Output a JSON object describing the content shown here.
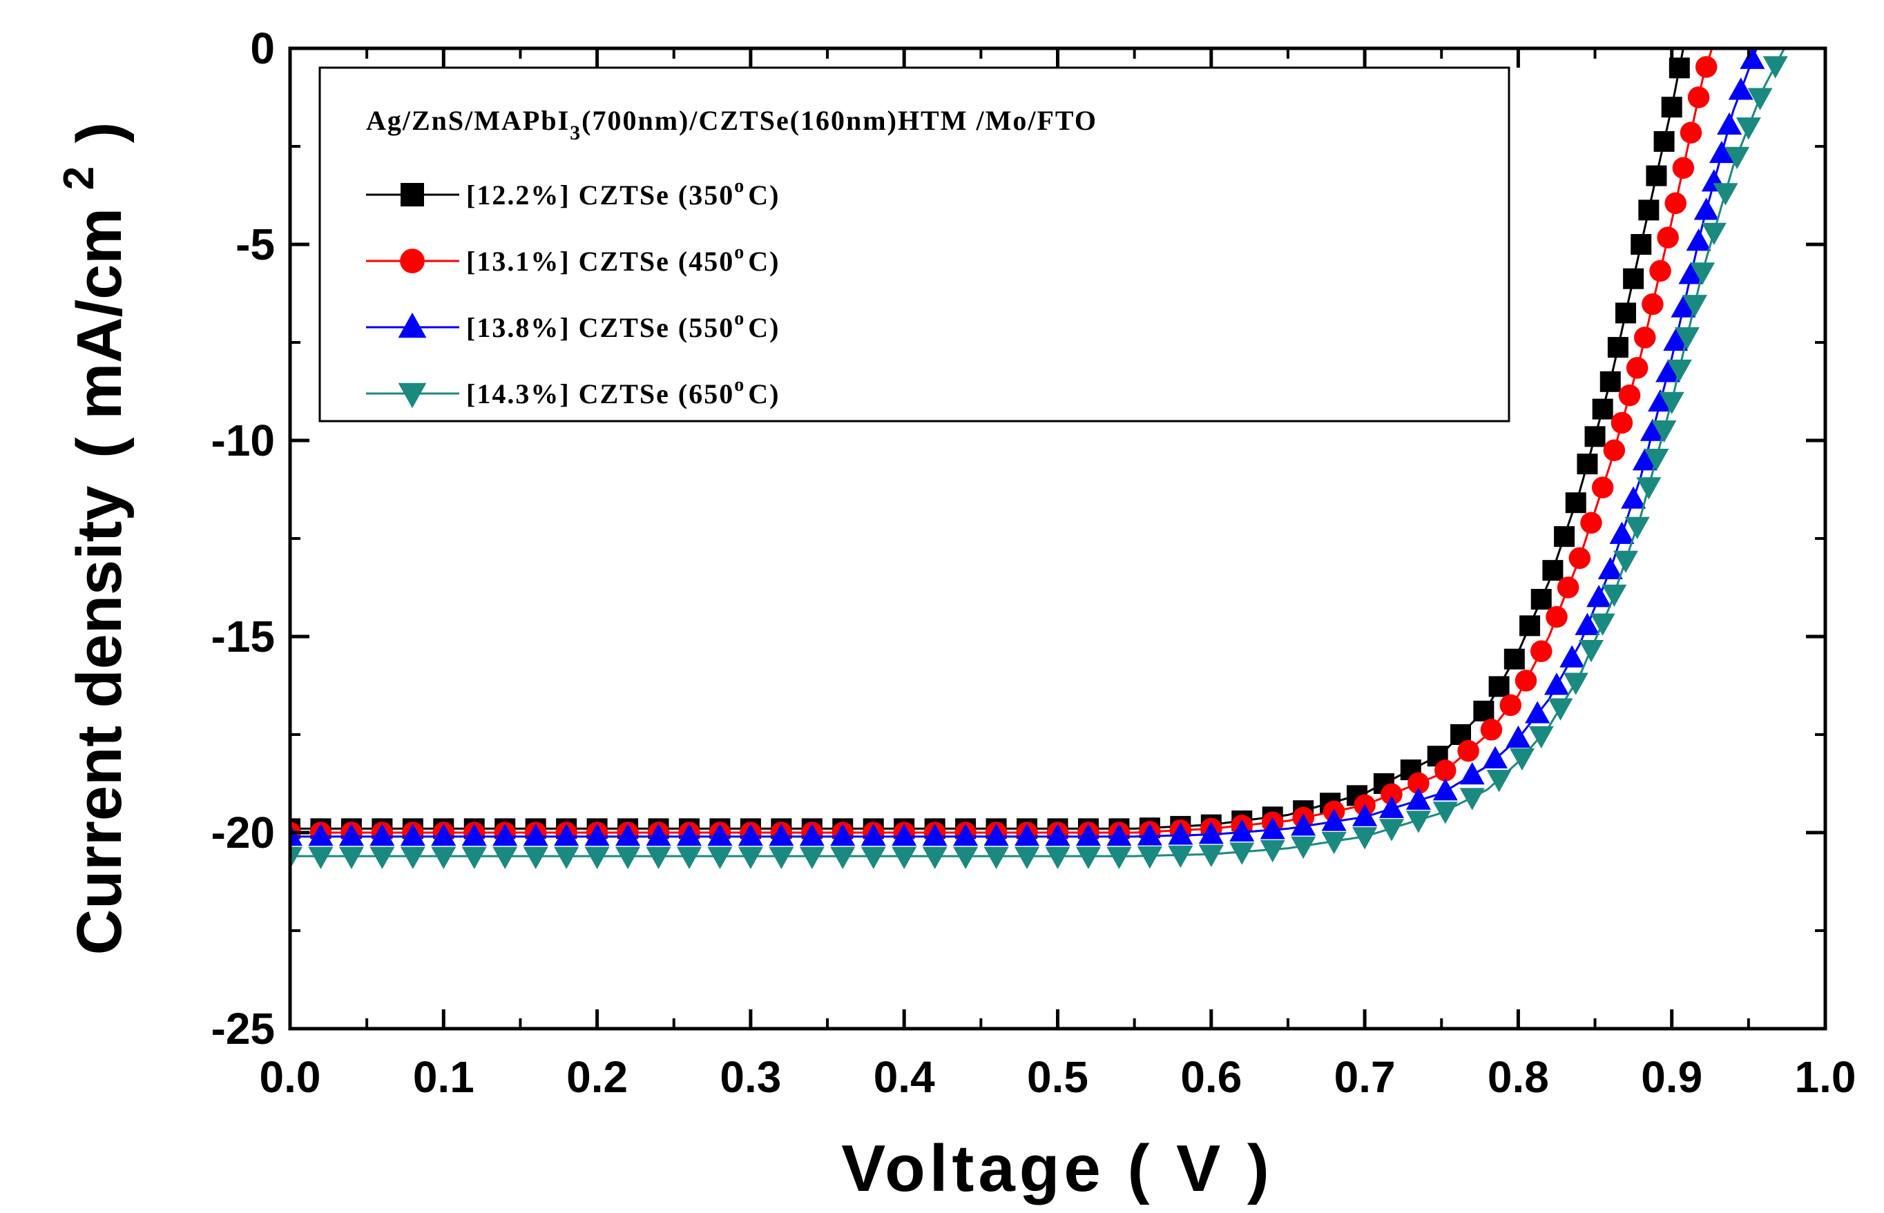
{
  "chart_data": {
    "type": "line",
    "title": "",
    "xlabel": "Voltage  ( V )",
    "ylabel_main": "Current  density",
    "ylabel_unit": "( mA/cm",
    "ylabel_sup": "2",
    "ylabel_close": ")",
    "xlim": [
      0.0,
      1.0
    ],
    "ylim": [
      -25,
      0
    ],
    "xticks": [
      "0.0",
      "0.1",
      "0.2",
      "0.3",
      "0.4",
      "0.5",
      "0.6",
      "0.7",
      "0.8",
      "0.9",
      "1.0"
    ],
    "xtick_values": [
      0.0,
      0.1,
      0.2,
      0.3,
      0.4,
      0.5,
      0.6,
      0.7,
      0.8,
      0.9,
      1.0
    ],
    "yticks": [
      "0",
      "-5",
      "-10",
      "-15",
      "-20",
      "-25"
    ],
    "ytick_values": [
      0,
      -5,
      -10,
      -15,
      -20,
      -25
    ],
    "legend": {
      "position": "top-left",
      "header_main": "Ag/ZnS/MAPbI",
      "header_sub": "3",
      "header_rest": "(700nm)/CZTSe(160nm)HTM /Mo/FTO"
    },
    "series": [
      {
        "name": "[12.2%] CZTSe (350°C)",
        "label_main": "[12.2%] CZTSe (350",
        "label_sup": "o",
        "label_end": "C)",
        "color": "#000000",
        "marker": "square",
        "jsc": -19.9,
        "curve": [
          [
            0.0,
            -19.9
          ],
          [
            0.55,
            -19.9
          ],
          [
            0.6,
            -19.8
          ],
          [
            0.65,
            -19.55
          ],
          [
            0.7,
            -19.0
          ],
          [
            0.75,
            -18.0
          ],
          [
            0.78,
            -16.8
          ],
          [
            0.8,
            -15.4
          ],
          [
            0.82,
            -13.6
          ],
          [
            0.84,
            -11.3
          ],
          [
            0.86,
            -8.5
          ],
          [
            0.88,
            -5.0
          ],
          [
            0.9,
            -1.5
          ],
          [
            0.91,
            0.5
          ]
        ]
      },
      {
        "name": "[13.1%] CZTSe (450°C)",
        "label_main": "[13.1%] CZTSe (450",
        "label_sup": "o",
        "label_end": "C)",
        "color": "#ff0000",
        "marker": "circle",
        "jsc": -20.0,
        "curve": [
          [
            0.0,
            -20.0
          ],
          [
            0.55,
            -20.0
          ],
          [
            0.6,
            -19.9
          ],
          [
            0.65,
            -19.7
          ],
          [
            0.7,
            -19.3
          ],
          [
            0.75,
            -18.5
          ],
          [
            0.78,
            -17.5
          ],
          [
            0.8,
            -16.5
          ],
          [
            0.82,
            -15.0
          ],
          [
            0.84,
            -13.0
          ],
          [
            0.86,
            -10.6
          ],
          [
            0.88,
            -7.8
          ],
          [
            0.9,
            -4.4
          ],
          [
            0.92,
            -0.8
          ],
          [
            0.93,
            0.5
          ]
        ]
      },
      {
        "name": "[13.8%] CZTSe (550°C)",
        "label_main": "[13.8%] CZTSe (550",
        "label_sup": "o",
        "label_end": "C)",
        "color": "#0000ff",
        "marker": "triangle-up",
        "jsc": -20.1,
        "curve": [
          [
            0.0,
            -20.1
          ],
          [
            0.55,
            -20.1
          ],
          [
            0.6,
            -20.05
          ],
          [
            0.65,
            -19.9
          ],
          [
            0.7,
            -19.6
          ],
          [
            0.75,
            -19.0
          ],
          [
            0.78,
            -18.3
          ],
          [
            0.8,
            -17.6
          ],
          [
            0.82,
            -16.6
          ],
          [
            0.84,
            -15.2
          ],
          [
            0.86,
            -13.3
          ],
          [
            0.88,
            -10.9
          ],
          [
            0.9,
            -7.9
          ],
          [
            0.92,
            -4.5
          ],
          [
            0.94,
            -1.6
          ],
          [
            0.96,
            0.5
          ]
        ]
      },
      {
        "name": "[14.3%] CZTSe (650°C)",
        "label_main": "[14.3%] CZTSe (650",
        "label_sup": "o",
        "label_end": "C)",
        "color": "#1a8a80",
        "marker": "triangle-down",
        "jsc": -20.6,
        "curve": [
          [
            0.0,
            -20.6
          ],
          [
            0.55,
            -20.6
          ],
          [
            0.6,
            -20.55
          ],
          [
            0.65,
            -20.4
          ],
          [
            0.7,
            -20.1
          ],
          [
            0.75,
            -19.5
          ],
          [
            0.78,
            -18.9
          ],
          [
            0.8,
            -18.2
          ],
          [
            0.82,
            -17.3
          ],
          [
            0.84,
            -16.0
          ],
          [
            0.86,
            -14.2
          ],
          [
            0.88,
            -11.9
          ],
          [
            0.9,
            -9.0
          ],
          [
            0.92,
            -5.7
          ],
          [
            0.94,
            -3.0
          ],
          [
            0.96,
            -1.0
          ],
          [
            0.98,
            0.5
          ]
        ]
      }
    ]
  }
}
